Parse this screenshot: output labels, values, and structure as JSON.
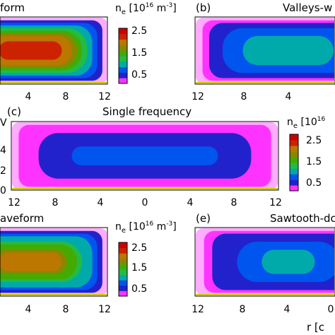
{
  "colorbar": {
    "label_main": "n",
    "label_sub": "e",
    "label_units": " [10",
    "label_exp": "16",
    "label_units2": " m",
    "label_exp2": "-3",
    "label_close": "]",
    "ticks": [
      "2.5",
      "1.5",
      "0.5"
    ],
    "tick_values": [
      2.5,
      1.5,
      0.5
    ],
    "range": [
      0,
      3
    ],
    "colors": [
      "#ff33ff",
      "#2222cc",
      "#0055ee",
      "#00aaaa",
      "#22bb44",
      "#44aa00",
      "#888800",
      "#bb7700",
      "#cc2200",
      "#cc0000"
    ]
  },
  "panels": {
    "a": {
      "title": "form",
      "tag": "",
      "ticks": [
        "4",
        "8",
        "12"
      ]
    },
    "b": {
      "title": "Valleys-w",
      "tag": "(b)",
      "ticks": [
        "12",
        "8",
        "4"
      ]
    },
    "c": {
      "title": "Single frequency",
      "tag": "(c)",
      "ticks": [
        "12",
        "8",
        "4",
        "0",
        "4",
        "8",
        "12"
      ],
      "yticks": [
        "4",
        "2",
        "0"
      ]
    },
    "d": {
      "title": "aveform",
      "tag": "",
      "ticks": [
        "4",
        "8",
        "12"
      ]
    },
    "e": {
      "title": "Sawtooth-dc",
      "tag": "(e)",
      "ticks": [
        "12",
        "8",
        "4",
        "0"
      ]
    }
  },
  "xlabel_visible": "r [c",
  "chart_data": [
    {
      "type": "heatmap",
      "panel": "a",
      "title": "form",
      "x_ticks": [
        4,
        8,
        12
      ],
      "core_ne": 2.6,
      "edge_ne": 0.0
    },
    {
      "type": "heatmap",
      "panel": "b",
      "title": "Valleys-w",
      "x_ticks": [
        12,
        8,
        4
      ],
      "core_ne": 1.2,
      "edge_ne": 0.0
    },
    {
      "type": "heatmap",
      "panel": "c",
      "title": "Single frequency",
      "x_ticks": [
        -12,
        -8,
        -4,
        0,
        4,
        8,
        12
      ],
      "y_ticks": [
        4,
        2,
        0
      ],
      "core_ne": 0.65,
      "edge_ne": 0.0
    },
    {
      "type": "heatmap",
      "panel": "d",
      "title": "aveform",
      "x_ticks": [
        4,
        8,
        12
      ],
      "core_ne": 2.2,
      "edge_ne": 0.0
    },
    {
      "type": "heatmap",
      "panel": "e",
      "title": "Sawtooth-dc",
      "x_ticks": [
        12,
        8,
        4,
        0
      ],
      "core_ne": 1.05,
      "edge_ne": 0.0
    }
  ]
}
